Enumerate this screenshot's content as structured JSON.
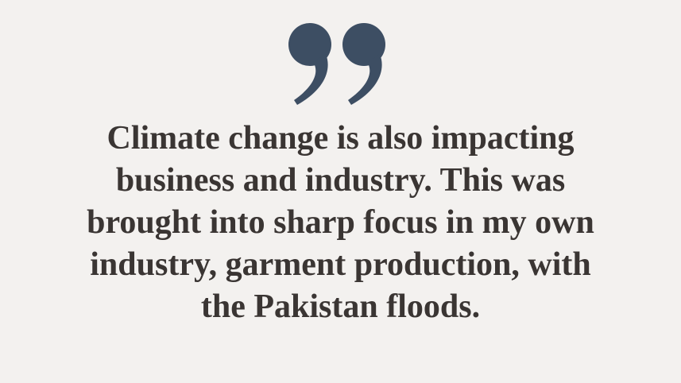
{
  "quote": {
    "icon": "closing-quote-mark-icon",
    "icon_color": "#3d4e63",
    "text_color": "#3a3533",
    "background": "#f3f1ef",
    "lines": [
      "Climate change is also impacting",
      "business and industry. This was",
      "brought into sharp focus in my own",
      "industry, garment production, with",
      "the Pakistan floods."
    ]
  }
}
